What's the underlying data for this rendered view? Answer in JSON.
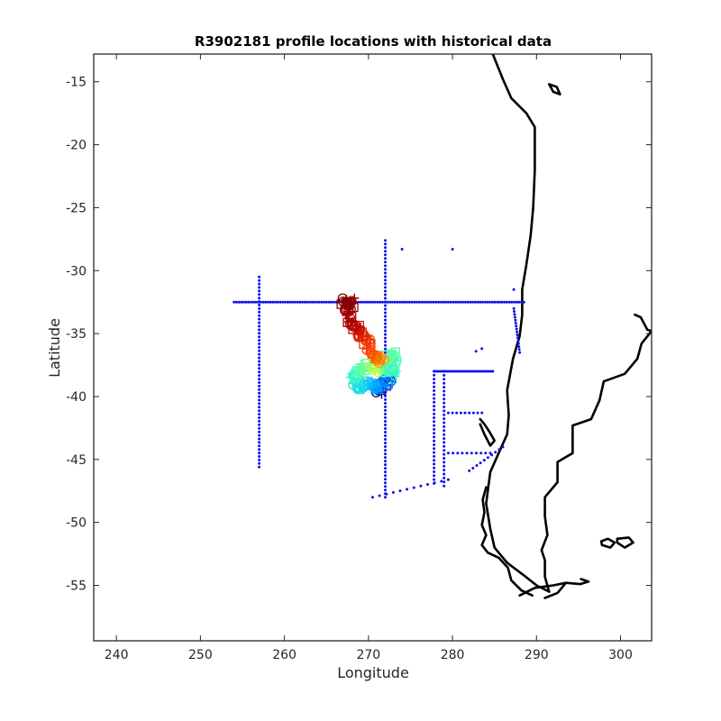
{
  "chart_data": {
    "type": "scatter",
    "title": "R3902181 profile locations with historical data",
    "xlabel": "Longitude",
    "ylabel": "Latitude",
    "xlim": [
      237.3,
      303.7
    ],
    "ylim": [
      -59.4,
      -12.8
    ],
    "xticks": [
      240,
      250,
      260,
      270,
      280,
      290,
      300
    ],
    "yticks": [
      -15,
      -20,
      -25,
      -30,
      -35,
      -40,
      -45,
      -50,
      -55
    ],
    "xtick_labels": [
      "240",
      "250",
      "260",
      "270",
      "280",
      "290",
      "300"
    ],
    "ytick_labels": [
      "-15",
      "-20",
      "-25",
      "-30",
      "-35",
      "-40",
      "-45",
      "-50",
      "-55"
    ],
    "grid": false,
    "box": true,
    "colors": {
      "historical": "#1010ee",
      "coast": "#000000",
      "profile_gradient": [
        "#00007f",
        "#0040ff",
        "#00c0ff",
        "#40ffc0",
        "#c0ff40",
        "#ffc000",
        "#ff4000",
        "#b00000",
        "#7f0000"
      ]
    },
    "series": [
      {
        "role": "historical-points",
        "marker": "dot",
        "color": "#1010ee",
        "lines": [
          {
            "x0": 254.0,
            "y0": -32.5,
            "x1": 288.5,
            "y1": -32.5,
            "n": 120
          },
          {
            "x0": 257.0,
            "y0": -30.5,
            "x1": 257.0,
            "y1": -45.6,
            "n": 55
          },
          {
            "x0": 272.0,
            "y0": -27.6,
            "x1": 272.0,
            "y1": -48.0,
            "n": 72
          },
          {
            "x0": 277.8,
            "y0": -38.0,
            "x1": 277.8,
            "y1": -46.9,
            "n": 30
          },
          {
            "x0": 279.0,
            "y0": -38.0,
            "x1": 279.0,
            "y1": -47.1,
            "n": 30
          },
          {
            "x0": 277.8,
            "y0": -38.0,
            "x1": 284.8,
            "y1": -38.0,
            "n": 30
          },
          {
            "x0": 279.5,
            "y0": -41.3,
            "x1": 283.5,
            "y1": -41.3,
            "n": 9
          },
          {
            "x0": 279.5,
            "y0": -44.5,
            "x1": 284.5,
            "y1": -44.5,
            "n": 10
          },
          {
            "x0": 282.0,
            "y0": -45.9,
            "x1": 286.0,
            "y1": -44.0,
            "n": 10
          },
          {
            "x0": 270.5,
            "y0": -48.0,
            "x1": 279.5,
            "y1": -46.6,
            "n": 12
          },
          {
            "x0": 287.3,
            "y0": -33.0,
            "x1": 288.0,
            "y1": -36.5,
            "n": 16
          }
        ],
        "points": [
          [
            274.0,
            -28.3
          ],
          [
            280.0,
            -28.3
          ],
          [
            282.8,
            -36.4
          ],
          [
            287.3,
            -31.5
          ],
          [
            283.5,
            -36.2
          ]
        ]
      },
      {
        "role": "profile-track",
        "marker": "mixed-symbols",
        "colormap": "jet",
        "track": [
          [
            267.0,
            -32.5
          ],
          [
            268.0,
            -32.4
          ],
          [
            267.5,
            -33.3
          ],
          [
            268.0,
            -34.2
          ],
          [
            269.0,
            -35.0
          ],
          [
            270.0,
            -35.7
          ],
          [
            270.5,
            -36.4
          ],
          [
            271.2,
            -37.0
          ],
          [
            272.5,
            -37.0
          ],
          [
            273.3,
            -36.8
          ],
          [
            272.8,
            -37.8
          ],
          [
            271.0,
            -37.8
          ],
          [
            269.5,
            -37.6
          ],
          [
            268.2,
            -38.3
          ],
          [
            268.8,
            -39.2
          ],
          [
            270.0,
            -39.0
          ],
          [
            271.2,
            -39.3
          ],
          [
            272.3,
            -38.6
          ],
          [
            273.0,
            -38.0
          ],
          [
            271.0,
            -39.6
          ]
        ]
      },
      {
        "role": "coastline",
        "color": "#000000",
        "polylines": [
          [
            [
              284.8,
              -12.8
            ],
            [
              286.0,
              -14.8
            ],
            [
              287.0,
              -16.3
            ],
            [
              288.8,
              -17.5
            ],
            [
              289.8,
              -18.6
            ],
            [
              289.8,
              -22.0
            ],
            [
              289.6,
              -25.0
            ],
            [
              289.3,
              -27.2
            ],
            [
              288.8,
              -29.5
            ],
            [
              288.3,
              -31.5
            ],
            [
              288.3,
              -33.5
            ],
            [
              288.0,
              -35.2
            ],
            [
              287.2,
              -37.0
            ],
            [
              286.5,
              -39.5
            ],
            [
              286.7,
              -41.5
            ],
            [
              286.5,
              -43.0
            ],
            [
              285.5,
              -44.5
            ],
            [
              284.5,
              -46.0
            ],
            [
              284.0,
              -48.5
            ],
            [
              284.5,
              -50.5
            ],
            [
              285.0,
              -52.0
            ],
            [
              286.5,
              -53.2
            ],
            [
              288.5,
              -54.2
            ],
            [
              290.0,
              -55.0
            ],
            [
              291.5,
              -55.5
            ]
          ],
          [
            [
              291.5,
              -55.5
            ],
            [
              291.0,
              -54.3
            ],
            [
              291.0,
              -53.0
            ],
            [
              290.6,
              -52.2
            ],
            [
              291.3,
              -51.0
            ],
            [
              291.0,
              -49.5
            ],
            [
              291.0,
              -48.0
            ],
            [
              292.5,
              -46.8
            ],
            [
              292.5,
              -45.2
            ],
            [
              294.3,
              -44.5
            ],
            [
              294.3,
              -42.3
            ],
            [
              296.5,
              -41.8
            ],
            [
              297.5,
              -40.3
            ],
            [
              298.0,
              -38.8
            ],
            [
              300.5,
              -38.2
            ],
            [
              302.0,
              -37.0
            ],
            [
              302.5,
              -35.8
            ],
            [
              303.7,
              -34.8
            ]
          ],
          [
            [
              301.7,
              -33.5
            ],
            [
              302.4,
              -33.7
            ],
            [
              303.2,
              -34.7
            ],
            [
              303.7,
              -34.8
            ]
          ],
          [
            [
              288.0,
              -55.8
            ],
            [
              289.8,
              -55.2
            ],
            [
              292.0,
              -55.0
            ],
            [
              293.5,
              -54.8
            ],
            [
              292.5,
              -55.6
            ],
            [
              291.0,
              -56.0
            ]
          ],
          [
            [
              293.5,
              -54.8
            ],
            [
              295.2,
              -54.9
            ],
            [
              296.2,
              -54.7
            ],
            [
              295.3,
              -54.5
            ]
          ],
          [
            [
              291.5,
              -15.2
            ],
            [
              292.4,
              -15.4
            ],
            [
              292.8,
              -16.0
            ],
            [
              292.0,
              -15.8
            ],
            [
              291.5,
              -15.2
            ]
          ],
          [
            [
              297.7,
              -51.5
            ],
            [
              298.5,
              -51.3
            ],
            [
              299.3,
              -51.6
            ],
            [
              298.8,
              -52.0
            ],
            [
              297.8,
              -51.8
            ],
            [
              297.7,
              -51.5
            ]
          ],
          [
            [
              299.6,
              -51.3
            ],
            [
              301.0,
              -51.2
            ],
            [
              301.5,
              -51.6
            ],
            [
              300.5,
              -52.0
            ],
            [
              299.6,
              -51.6
            ],
            [
              299.6,
              -51.3
            ]
          ],
          [
            [
              283.3,
              -41.8
            ],
            [
              283.8,
              -42.2
            ],
            [
              284.4,
              -42.8
            ],
            [
              285.0,
              -43.5
            ],
            [
              284.5,
              -43.9
            ],
            [
              283.8,
              -43.0
            ],
            [
              283.3,
              -42.2
            ]
          ],
          [
            [
              284.0,
              -47.2
            ],
            [
              283.6,
              -48.2
            ],
            [
              283.8,
              -49.2
            ],
            [
              283.5,
              -50.2
            ],
            [
              284.0,
              -51.0
            ],
            [
              283.5,
              -51.8
            ],
            [
              284.2,
              -52.4
            ],
            [
              285.5,
              -52.8
            ],
            [
              286.6,
              -53.6
            ],
            [
              287.0,
              -54.6
            ],
            [
              288.2,
              -55.4
            ],
            [
              289.5,
              -55.8
            ]
          ]
        ]
      }
    ]
  }
}
